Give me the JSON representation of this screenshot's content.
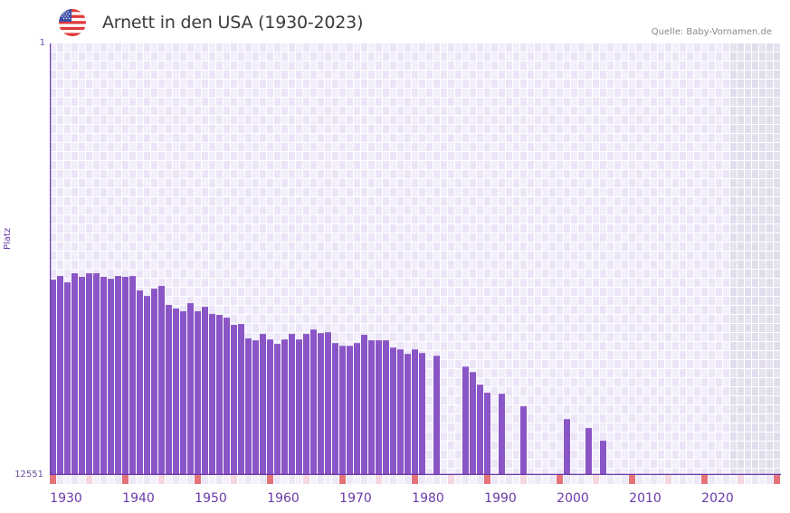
{
  "header": {
    "title": "Arnett in den USA (1930-2023)",
    "source": "Quelle: Baby-Vornamen.de",
    "flag_icon": "us-flag-icon"
  },
  "colors": {
    "bar": "#8a55c6",
    "axis": "#6a3aa8",
    "grid_bg_a": "#f2eefb",
    "grid_bg_b": "#ebe5f7",
    "future_bg": "#e2dded",
    "marker_decade": "#e5737a",
    "marker_mid": "#f5d7df",
    "marker_other": "#ede8f7"
  },
  "chart_data": {
    "type": "bar",
    "title": "Arnett in den USA (1930-2023)",
    "xlabel": "",
    "ylabel": "Platz",
    "ylim": [
      12551,
      1
    ],
    "y_inverted": true,
    "y_ticks": [
      "1",
      "12551"
    ],
    "x_ticks": [
      "1930",
      "1940",
      "1950",
      "1960",
      "1970",
      "1980",
      "1990",
      "2000",
      "2010",
      "2020"
    ],
    "x_range": [
      1930,
      2030
    ],
    "grid": true,
    "legend": null,
    "categories": [
      1930,
      1931,
      1932,
      1933,
      1934,
      1935,
      1936,
      1937,
      1938,
      1939,
      1940,
      1941,
      1942,
      1943,
      1944,
      1945,
      1946,
      1947,
      1948,
      1949,
      1950,
      1951,
      1952,
      1953,
      1954,
      1955,
      1956,
      1957,
      1958,
      1959,
      1960,
      1961,
      1962,
      1963,
      1964,
      1965,
      1966,
      1967,
      1968,
      1969,
      1970,
      1971,
      1972,
      1973,
      1974,
      1975,
      1976,
      1977,
      1978,
      1979,
      1980,
      1981,
      1983,
      1987,
      1988,
      1989,
      1990,
      1992,
      1995,
      2001,
      2004,
      2006
    ],
    "values": [
      6870,
      6765,
      6950,
      6685,
      6790,
      6685,
      6685,
      6790,
      6845,
      6765,
      6790,
      6765,
      7185,
      7345,
      7135,
      7055,
      7605,
      7710,
      7790,
      7555,
      7790,
      7660,
      7870,
      7895,
      7975,
      8185,
      8160,
      8580,
      8635,
      8450,
      8610,
      8740,
      8610,
      8450,
      8610,
      8450,
      8320,
      8425,
      8400,
      8715,
      8795,
      8795,
      8715,
      8475,
      8635,
      8635,
      8635,
      8845,
      8900,
      9030,
      8900,
      9005,
      9085,
      9400,
      9560,
      9925,
      10160,
      10190,
      10555,
      10925,
      11185,
      11555
    ]
  },
  "axis": {
    "y_top": "1",
    "y_bottom": "12551",
    "y_title": "Platz",
    "x_labels": [
      "1930",
      "1940",
      "1950",
      "1960",
      "1970",
      "1980",
      "1990",
      "2000",
      "2010",
      "2020"
    ]
  }
}
